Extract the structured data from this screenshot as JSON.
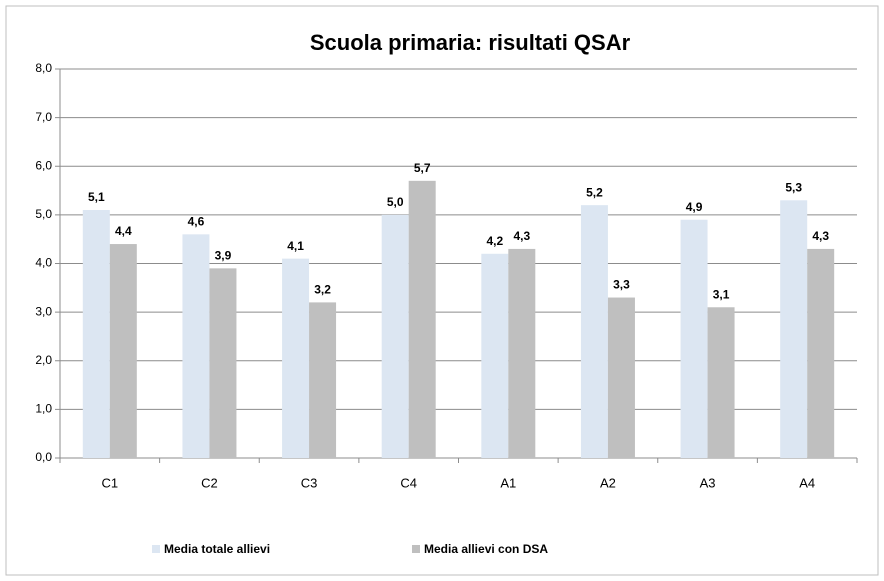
{
  "chart_data": {
    "type": "bar",
    "title": "Scuola primaria: risultati QSAr",
    "categories": [
      "C1",
      "C2",
      "C3",
      "C4",
      "A1",
      "A2",
      "A3",
      "A4"
    ],
    "series": [
      {
        "name": "Media totale allievi",
        "color": "#dce6f2",
        "values": [
          5.1,
          4.6,
          4.1,
          5.0,
          4.2,
          5.2,
          4.9,
          5.3
        ],
        "value_labels": [
          "5,1",
          "4,6",
          "4,1",
          "5,0",
          "4,2",
          "5,2",
          "4,9",
          "5,3"
        ]
      },
      {
        "name": "Media allievi con DSA",
        "color": "#bfbfbf",
        "values": [
          4.4,
          3.9,
          3.2,
          5.7,
          4.3,
          3.3,
          3.1,
          4.3
        ],
        "value_labels": [
          "4,4",
          "3,9",
          "3,2",
          "5,7",
          "4,3",
          "3,3",
          "3,1",
          "4,3"
        ]
      }
    ],
    "ylim": [
      0,
      8
    ],
    "yticks": [
      {
        "value": 0,
        "label": "0,0"
      },
      {
        "value": 1,
        "label": "1,0"
      },
      {
        "value": 2,
        "label": "2,0"
      },
      {
        "value": 3,
        "label": "3,0"
      },
      {
        "value": 4,
        "label": "4,0"
      },
      {
        "value": 5,
        "label": "5,0"
      },
      {
        "value": 6,
        "label": "6,0"
      },
      {
        "value": 7,
        "label": "7,0"
      },
      {
        "value": 8,
        "label": "8,0"
      }
    ],
    "grid": true,
    "legend": "bottom"
  }
}
